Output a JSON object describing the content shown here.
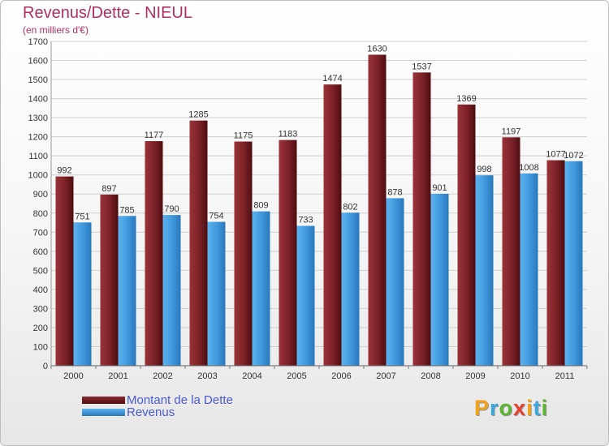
{
  "chart_data": {
    "type": "bar",
    "title": "Revenus/Dette - NIEUL",
    "subtitle": "(en milliers d'€)",
    "categories": [
      "2000",
      "2001",
      "2002",
      "2003",
      "2004",
      "2005",
      "2006",
      "2007",
      "2008",
      "2009",
      "2010",
      "2011"
    ],
    "series": [
      {
        "name": "Montant de la Dette",
        "values": [
          992,
          897,
          1177,
          1285,
          1175,
          1183,
          1474,
          1630,
          1537,
          1369,
          1197,
          1077
        ],
        "color": "#7a1f24"
      },
      {
        "name": "Revenus",
        "values": [
          751,
          785,
          790,
          754,
          809,
          733,
          802,
          878,
          901,
          998,
          1008,
          1072
        ],
        "color": "#3f97dc"
      }
    ],
    "ylim": [
      0,
      1700
    ],
    "yticks": [
      0,
      100,
      200,
      300,
      400,
      500,
      600,
      700,
      800,
      900,
      1000,
      1100,
      1200,
      1300,
      1400,
      1500,
      1600,
      1700
    ],
    "grid": true,
    "legend_position": "bottom-left",
    "data_labels": true
  },
  "brand": {
    "letters": [
      "P",
      "r",
      "o",
      "x",
      "i",
      "t",
      "i"
    ],
    "colors": [
      "#f0a21a",
      "#3aa6de",
      "#5cb531",
      "#e8402f",
      "#f0a21a",
      "#3aa6de",
      "#5cb531"
    ]
  }
}
